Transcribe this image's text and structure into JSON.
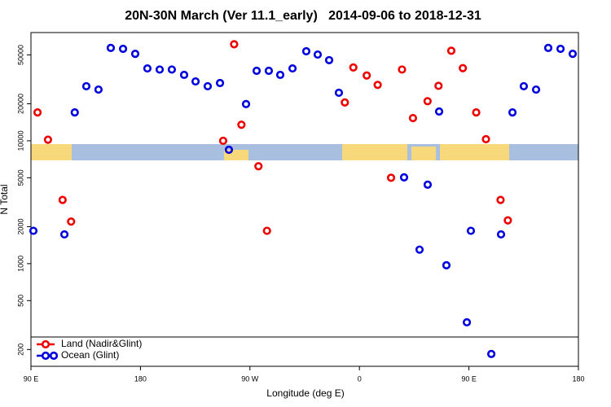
{
  "chart_data": {
    "type": "scatter",
    "title": "20N-30N March (Ver 11.1_early)   2014-09-06 to 2018-12-31",
    "x_label": "Longitude (deg E)",
    "y_label": "N Total",
    "log_y": true,
    "legend": "bottom-left",
    "xlim": [
      90,
      540
    ],
    "xticks": [
      {
        "value": 90,
        "label": "90 E"
      },
      180,
      {
        "value": 270,
        "label": "90 W"
      },
      {
        "value": 360,
        "label": "0"
      },
      {
        "value": 450,
        "label": "90 E"
      },
      {
        "value": 540,
        "label": "180"
      }
    ],
    "ylim": [
      146,
      76000
    ],
    "yticks": [
      200,
      500,
      1000,
      2000,
      5000,
      10000,
      20000,
      50000
    ],
    "series": [
      {
        "name": "Land (Nadir&Glint)",
        "color": "#ee0000",
        "x": [
          95.4,
          104,
          116,
          123,
          248,
          257,
          263,
          277,
          284,
          348,
          355,
          366,
          375,
          386,
          395,
          404,
          416,
          425,
          435.5,
          445,
          456,
          464,
          476,
          482
        ],
        "values": [
          17000,
          10200,
          3300,
          2200,
          10000,
          61000,
          13500,
          6200,
          1850,
          20500,
          39500,
          34000,
          28500,
          5000,
          38000,
          15300,
          21000,
          28000,
          54000,
          39000,
          17000,
          10300,
          3300,
          2250
        ]
      },
      {
        "name": "Ocean (Glint)",
        "color": "#0000dd",
        "x": [
          92,
          117.5,
          126,
          135.5,
          145.5,
          155.6,
          165.7,
          175.7,
          185.7,
          195.8,
          205.8,
          215.9,
          225.3,
          235.3,
          245.4,
          252.7,
          266.8,
          275.5,
          285.5,
          294.9,
          305,
          316.3,
          325.7,
          335.1,
          343.1,
          396.7,
          409.4,
          416.1,
          425.5,
          431.5,
          448.3,
          451.6,
          468.4,
          476.4,
          485.8,
          495.1,
          505.2,
          515.2,
          525.3,
          535.3
        ],
        "values": [
          1850,
          1730,
          17000,
          27800,
          26100,
          57000,
          56000,
          51000,
          38800,
          38000,
          38000,
          34400,
          30400,
          27800,
          29500,
          8450,
          19900,
          37100,
          37100,
          34400,
          38800,
          53500,
          50300,
          45300,
          24600,
          5040,
          1300,
          4390,
          17300,
          970,
          333,
          1850,
          184,
          1730,
          17000,
          27800,
          26100,
          57000,
          56000,
          51000
        ]
      }
    ]
  }
}
